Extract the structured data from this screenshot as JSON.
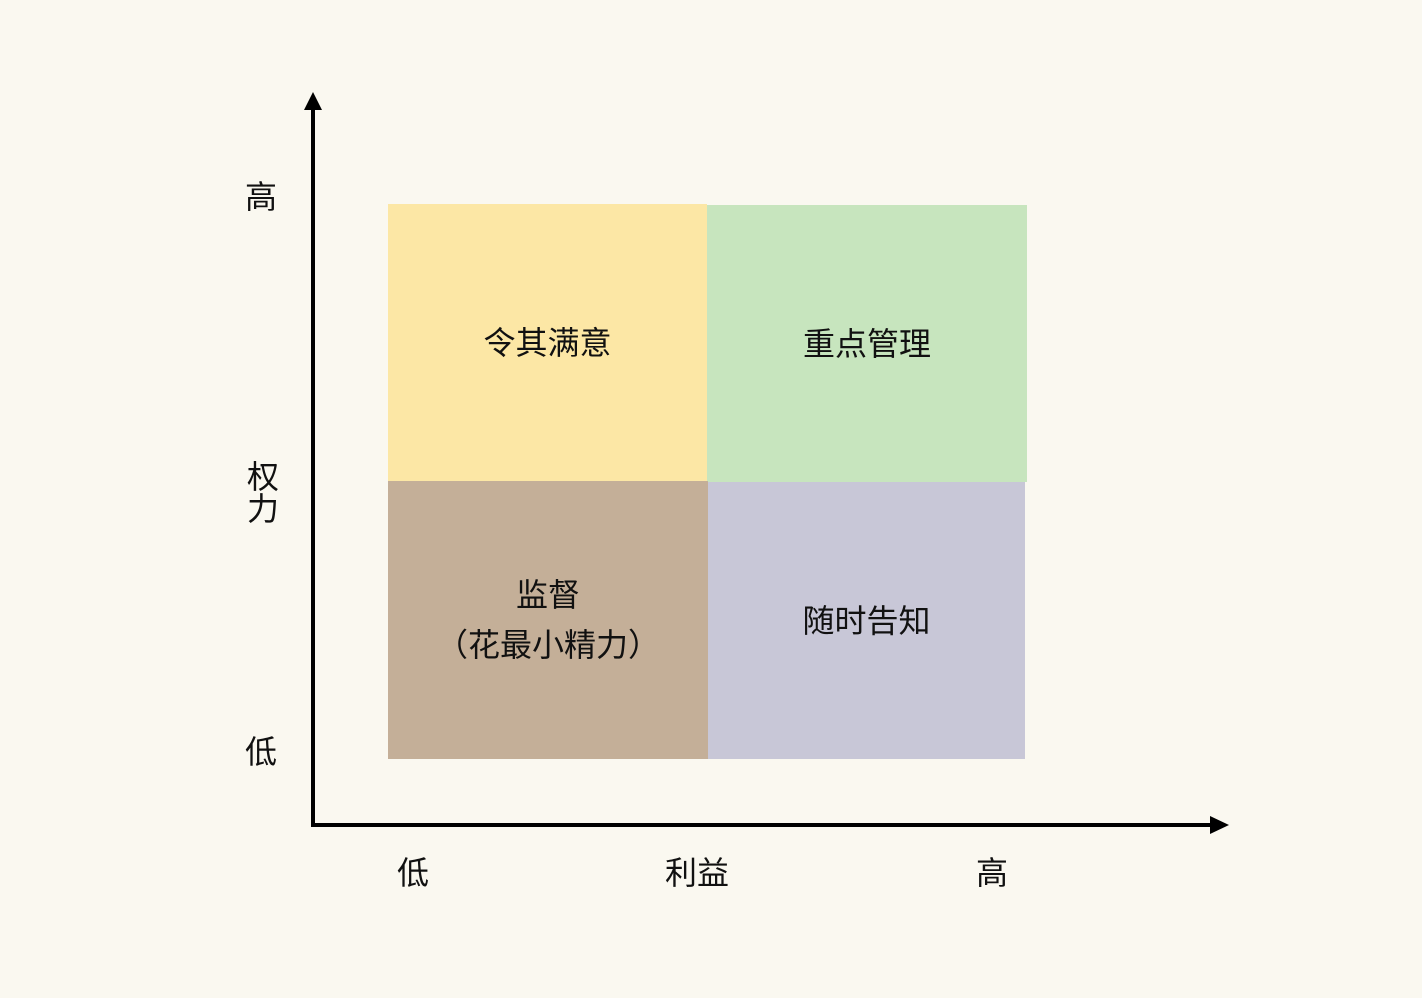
{
  "y_axis": {
    "label": "权力",
    "high": "高",
    "low": "低"
  },
  "x_axis": {
    "label": "利益",
    "high": "高",
    "low": "低"
  },
  "quadrants": {
    "top_left": {
      "line1": "令其满意",
      "line2": "",
      "color": "#fce7a5"
    },
    "top_right": {
      "line1": "重点管理",
      "line2": "",
      "color": "#c7e5be"
    },
    "bottom_left": {
      "line1": "监督",
      "line2": "（花最小精力）",
      "color": "#c4af98"
    },
    "bottom_right": {
      "line1": "随时告知",
      "line2": "",
      "color": "#c8c7d7"
    }
  }
}
